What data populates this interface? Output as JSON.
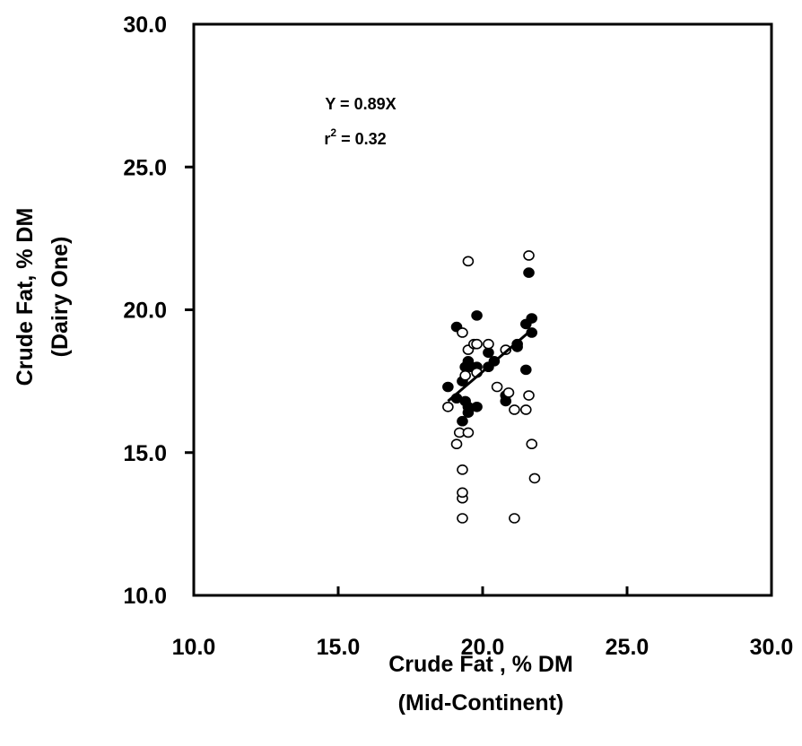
{
  "chart_data": {
    "type": "scatter",
    "title": "",
    "xlabel": "Crude Fat , % DM",
    "xlabel_sub": "(Mid-Continent)",
    "ylabel": "Crude Fat, % DM",
    "ylabel_sub": "(Dairy One)",
    "xlim": [
      10.0,
      30.0
    ],
    "ylim": [
      10.0,
      30.0
    ],
    "x_ticks": [
      10.0,
      15.0,
      20.0,
      25.0,
      30.0
    ],
    "y_ticks": [
      10.0,
      15.0,
      20.0,
      25.0,
      30.0
    ],
    "x_tick_labels": [
      "10.0",
      "15.0",
      "20.0",
      "25.0",
      "30.0"
    ],
    "y_tick_labels": [
      "10.0",
      "15.0",
      "20.0",
      "25.0",
      "30.0"
    ],
    "grid": false,
    "legend": null,
    "annotations": {
      "equation": "Y = 0.89X",
      "r2_base": "r",
      "r2_exp": "2",
      "r2_value": " = 0.32"
    },
    "series": [
      {
        "marker": "filled",
        "points": [
          [
            18.8,
            17.3
          ],
          [
            19.1,
            19.4
          ],
          [
            19.1,
            16.9
          ],
          [
            19.3,
            17.5
          ],
          [
            19.3,
            16.1
          ],
          [
            19.4,
            18.0
          ],
          [
            19.4,
            16.8
          ],
          [
            19.5,
            18.2
          ],
          [
            19.5,
            16.6
          ],
          [
            19.5,
            16.4
          ],
          [
            19.6,
            18.0
          ],
          [
            19.8,
            19.8
          ],
          [
            19.8,
            16.6
          ],
          [
            19.8,
            18.0
          ],
          [
            20.2,
            18.5
          ],
          [
            20.2,
            18.0
          ],
          [
            20.4,
            18.2
          ],
          [
            20.8,
            17.0
          ],
          [
            20.8,
            16.8
          ],
          [
            21.2,
            18.7
          ],
          [
            21.2,
            18.8
          ],
          [
            21.5,
            19.5
          ],
          [
            21.5,
            17.9
          ],
          [
            21.6,
            21.3
          ],
          [
            21.7,
            19.7
          ],
          [
            21.7,
            19.2
          ]
        ]
      },
      {
        "marker": "open",
        "points": [
          [
            18.8,
            16.6
          ],
          [
            19.1,
            15.3
          ],
          [
            19.2,
            15.7
          ],
          [
            19.3,
            19.2
          ],
          [
            19.3,
            14.4
          ],
          [
            19.3,
            13.4
          ],
          [
            19.3,
            13.6
          ],
          [
            19.3,
            12.7
          ],
          [
            19.4,
            17.7
          ],
          [
            19.5,
            15.7
          ],
          [
            19.5,
            21.7
          ],
          [
            19.5,
            18.6
          ],
          [
            19.7,
            18.8
          ],
          [
            19.8,
            18.8
          ],
          [
            19.8,
            17.8
          ],
          [
            20.2,
            18.8
          ],
          [
            20.5,
            17.3
          ],
          [
            20.8,
            18.6
          ],
          [
            20.9,
            17.1
          ],
          [
            21.1,
            16.5
          ],
          [
            21.1,
            12.7
          ],
          [
            21.5,
            16.5
          ],
          [
            21.6,
            21.9
          ],
          [
            21.6,
            17.0
          ],
          [
            21.7,
            15.3
          ],
          [
            21.8,
            14.1
          ]
        ]
      }
    ],
    "regression": {
      "slope": 0.89,
      "x_start": 18.8,
      "x_end": 21.7,
      "y_start": 16.8,
      "y_end": 19.3
    }
  }
}
